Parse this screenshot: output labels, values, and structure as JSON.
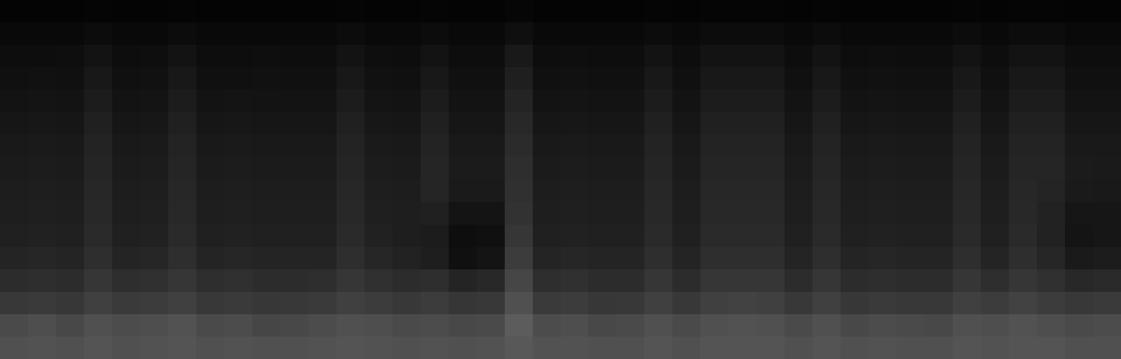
{
  "chart_data": {
    "type": "heatmap",
    "tick_labels": false,
    "cells": [
      [
        4,
        4,
        4,
        5,
        4,
        4,
        5,
        4,
        4,
        4,
        4,
        4,
        5,
        4,
        4,
        5,
        4,
        4,
        6,
        4,
        4,
        4,
        4,
        5,
        4,
        5,
        5,
        5,
        4,
        5,
        4,
        4,
        4,
        4,
        5,
        4,
        5,
        5,
        4,
        4
      ],
      [
        9,
        9,
        9,
        12,
        9,
        9,
        12,
        9,
        9,
        9,
        9,
        9,
        12,
        9,
        9,
        12,
        9,
        9,
        15,
        9,
        9,
        9,
        9,
        12,
        9,
        12,
        12,
        12,
        9,
        12,
        9,
        9,
        9,
        9,
        12,
        9,
        12,
        12,
        9,
        9
      ],
      [
        13,
        13,
        14,
        19,
        13,
        14,
        19,
        13,
        13,
        14,
        13,
        13,
        19,
        14,
        13,
        19,
        13,
        13,
        25,
        13,
        14,
        13,
        13,
        19,
        13,
        19,
        19,
        19,
        13,
        19,
        13,
        14,
        13,
        13,
        19,
        13,
        19,
        19,
        13,
        13
      ],
      [
        16,
        17,
        16,
        24,
        16,
        17,
        24,
        16,
        16,
        17,
        16,
        16,
        24,
        17,
        16,
        24,
        16,
        16,
        31,
        16,
        17,
        16,
        16,
        24,
        16,
        24,
        24,
        24,
        16,
        24,
        16,
        17,
        16,
        16,
        24,
        16,
        24,
        24,
        16,
        16
      ],
      [
        19,
        20,
        19,
        28,
        19,
        20,
        28,
        19,
        20,
        19,
        19,
        19,
        28,
        20,
        19,
        28,
        19,
        19,
        36,
        19,
        20,
        19,
        19,
        28,
        19,
        28,
        28,
        28,
        19,
        28,
        19,
        20,
        19,
        19,
        28,
        19,
        28,
        28,
        19,
        19
      ],
      [
        22,
        23,
        22,
        32,
        22,
        23,
        32,
        22,
        23,
        22,
        22,
        22,
        32,
        23,
        22,
        32,
        22,
        22,
        40,
        22,
        23,
        22,
        22,
        32,
        22,
        32,
        32,
        32,
        22,
        32,
        22,
        23,
        22,
        22,
        32,
        22,
        32,
        32,
        22,
        22
      ],
      [
        25,
        26,
        25,
        35,
        25,
        26,
        35,
        25,
        26,
        25,
        25,
        25,
        35,
        26,
        25,
        35,
        25,
        25,
        43,
        25,
        26,
        25,
        25,
        35,
        25,
        35,
        35,
        35,
        25,
        35,
        25,
        26,
        25,
        25,
        35,
        25,
        35,
        35,
        25,
        25
      ],
      [
        27,
        28,
        27,
        37,
        27,
        28,
        37,
        27,
        28,
        27,
        27,
        27,
        37,
        28,
        27,
        37,
        27,
        27,
        46,
        27,
        28,
        27,
        27,
        37,
        27,
        37,
        37,
        37,
        27,
        37,
        27,
        28,
        27,
        27,
        37,
        27,
        37,
        37,
        27,
        26
      ],
      [
        29,
        30,
        29,
        39,
        29,
        30,
        39,
        29,
        30,
        29,
        29,
        29,
        39,
        30,
        29,
        37,
        26,
        26,
        48,
        29,
        30,
        29,
        29,
        39,
        29,
        39,
        39,
        39,
        29,
        39,
        29,
        30,
        29,
        29,
        39,
        29,
        39,
        36,
        26,
        25
      ],
      [
        30,
        31,
        30,
        40,
        30,
        31,
        40,
        30,
        31,
        30,
        30,
        30,
        40,
        31,
        30,
        32,
        20,
        20,
        50,
        30,
        31,
        30,
        30,
        40,
        30,
        40,
        40,
        40,
        30,
        40,
        30,
        31,
        30,
        30,
        40,
        30,
        40,
        34,
        22,
        22
      ],
      [
        32,
        33,
        32,
        42,
        32,
        33,
        42,
        32,
        33,
        32,
        32,
        32,
        42,
        33,
        30,
        28,
        14,
        16,
        54,
        32,
        33,
        32,
        32,
        42,
        32,
        42,
        42,
        42,
        32,
        42,
        32,
        33,
        32,
        32,
        42,
        32,
        42,
        34,
        20,
        22
      ],
      [
        36,
        38,
        36,
        46,
        36,
        38,
        46,
        36,
        38,
        36,
        36,
        36,
        46,
        38,
        34,
        30,
        16,
        20,
        60,
        36,
        38,
        36,
        36,
        46,
        36,
        46,
        46,
        46,
        36,
        46,
        36,
        38,
        36,
        36,
        46,
        36,
        46,
        38,
        26,
        28
      ],
      [
        44,
        46,
        44,
        54,
        46,
        48,
        54,
        46,
        48,
        44,
        44,
        46,
        54,
        48,
        44,
        46,
        36,
        40,
        70,
        46,
        48,
        44,
        44,
        54,
        44,
        54,
        54,
        54,
        44,
        54,
        44,
        46,
        44,
        44,
        54,
        46,
        54,
        48,
        40,
        42
      ],
      [
        56,
        58,
        55,
        64,
        58,
        60,
        64,
        56,
        58,
        55,
        56,
        58,
        64,
        60,
        56,
        60,
        54,
        56,
        80,
        58,
        60,
        55,
        56,
        64,
        56,
        64,
        66,
        64,
        56,
        64,
        55,
        58,
        56,
        56,
        64,
        60,
        66,
        60,
        56,
        58
      ],
      [
        74,
        78,
        72,
        80,
        76,
        78,
        82,
        74,
        76,
        70,
        72,
        76,
        80,
        78,
        74,
        76,
        72,
        74,
        92,
        76,
        78,
        72,
        74,
        80,
        74,
        80,
        82,
        80,
        74,
        80,
        72,
        76,
        74,
        72,
        80,
        78,
        82,
        78,
        74,
        76
      ],
      [
        80,
        82,
        80,
        84,
        80,
        82,
        84,
        80,
        82,
        80,
        80,
        82,
        84,
        82,
        80,
        82,
        80,
        82,
        88,
        82,
        82,
        80,
        80,
        84,
        80,
        84,
        84,
        84,
        80,
        84,
        80,
        82,
        80,
        80,
        84,
        82,
        84,
        84,
        80,
        80
      ]
    ]
  }
}
